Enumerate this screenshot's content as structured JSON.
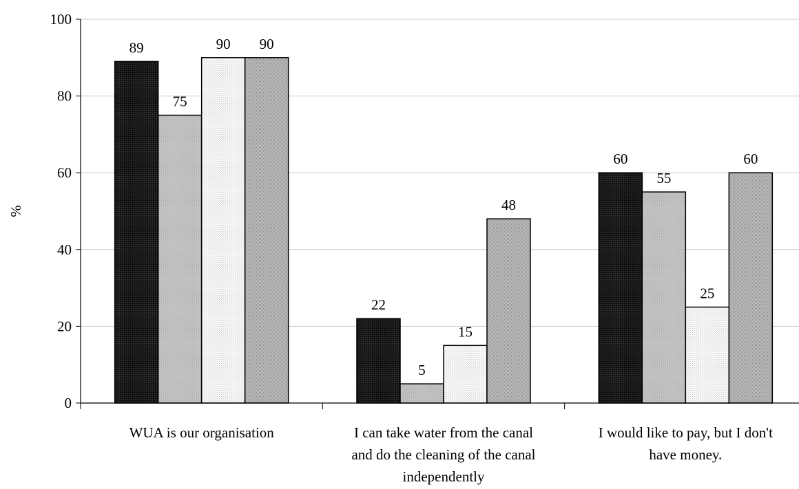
{
  "chart_data": {
    "type": "bar",
    "title": "",
    "xlabel": "",
    "ylabel": "%",
    "ylim": [
      0,
      100
    ],
    "yticks": [
      0,
      20,
      40,
      60,
      80,
      100
    ],
    "grid": true,
    "legend": "none",
    "categories": [
      [
        "WUA is our organisation"
      ],
      [
        "I can take water from the canal",
        "and do the cleaning  of the canal",
        "independently"
      ],
      [
        "I would like to pay, but I don't",
        "have money."
      ]
    ],
    "series": [
      {
        "values": [
          89,
          22,
          60
        ],
        "color": "#111111",
        "pattern": "solid-dark"
      },
      {
        "values": [
          75,
          5,
          55
        ],
        "color": "#c0c0c0",
        "pattern": "gray"
      },
      {
        "values": [
          90,
          15,
          25
        ],
        "color": "#f0f0f0",
        "pattern": "dotted-light"
      },
      {
        "values": [
          90,
          48,
          60
        ],
        "color": "#a8a8a8",
        "pattern": "dotted-gray"
      }
    ]
  }
}
